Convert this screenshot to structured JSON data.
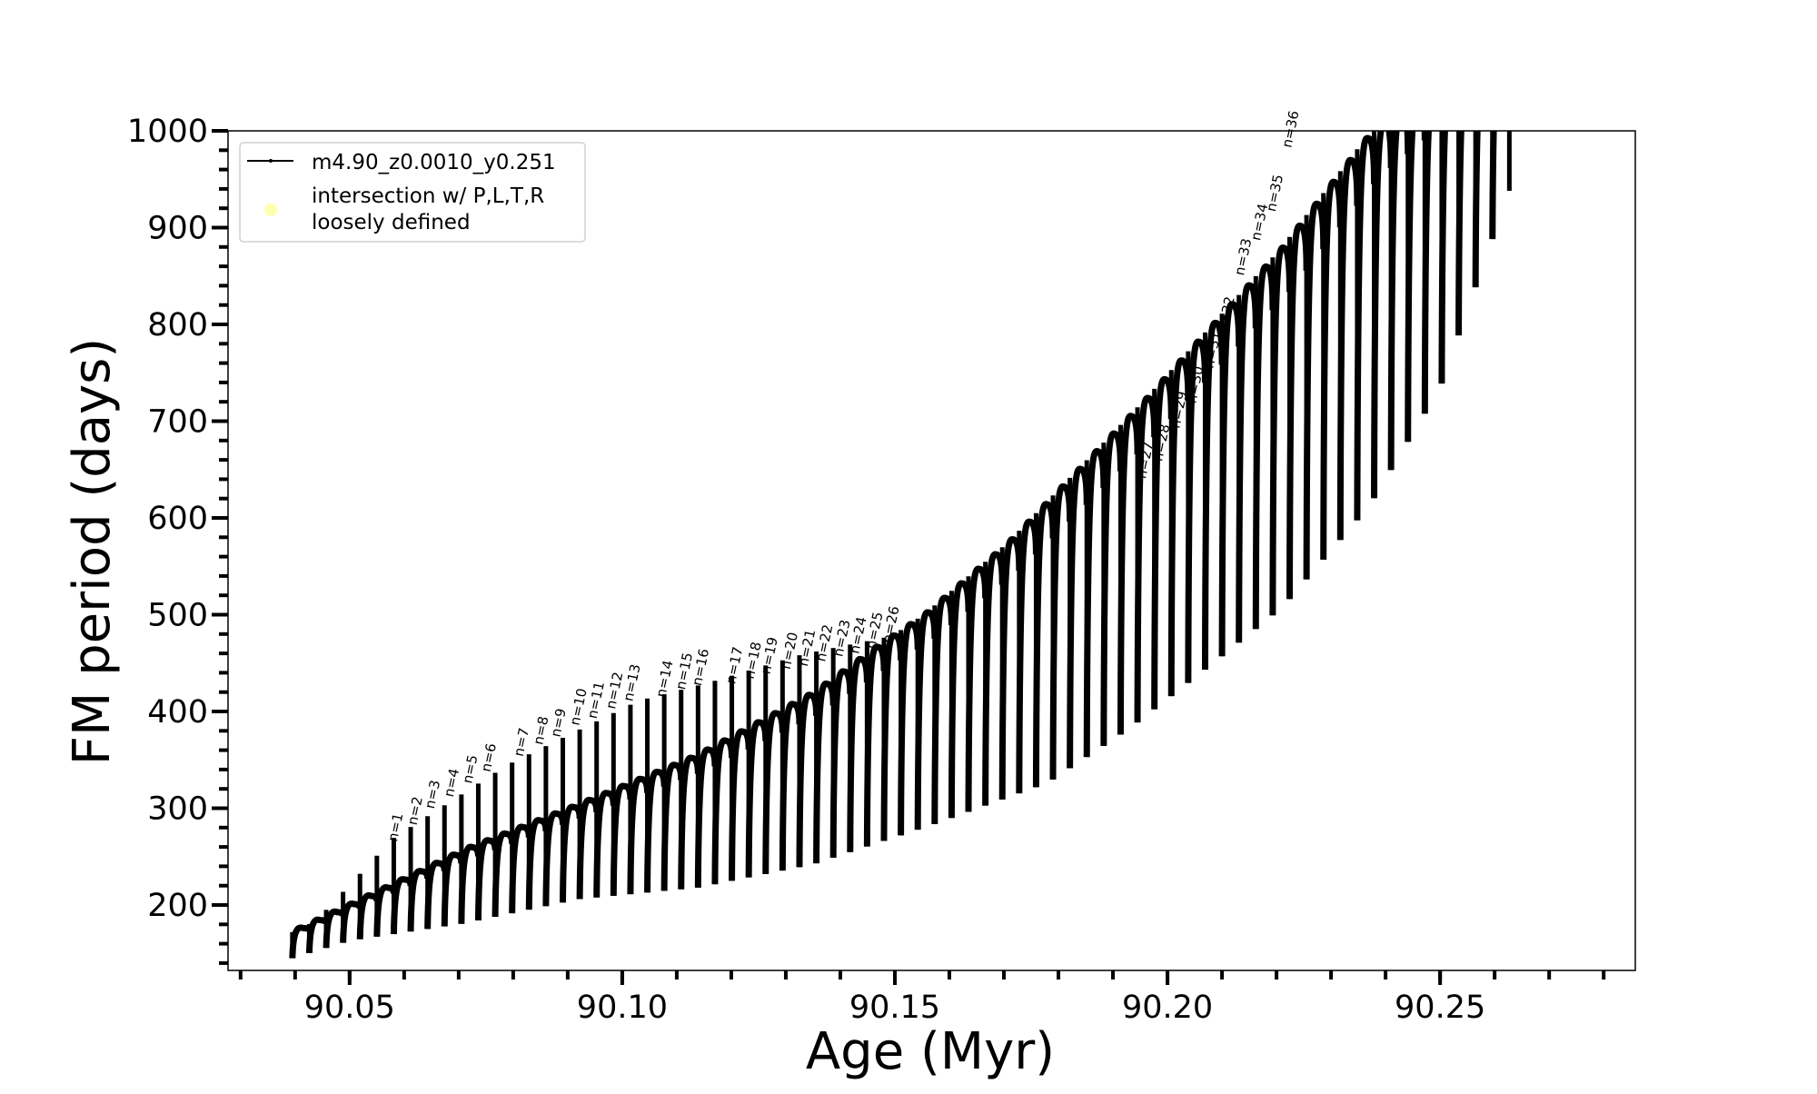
{
  "chart_data": {
    "type": "line",
    "title": "",
    "xlabel": "Age (Myr)",
    "ylabel": "FM period (days)",
    "xlim": [
      90.0277,
      90.2858
    ],
    "ylim": [
      132.4,
      1000
    ],
    "xticks": [
      "90.05",
      "90.10",
      "90.15",
      "90.20",
      "90.25"
    ],
    "xtick_values": [
      90.05,
      90.1,
      90.15,
      90.2,
      90.25
    ],
    "x_minor_step": 0.01,
    "yticks": [
      "200",
      "300",
      "400",
      "500",
      "600",
      "700",
      "800",
      "900",
      "1000"
    ],
    "ytick_values": [
      200,
      300,
      400,
      500,
      600,
      700,
      800,
      900,
      1000
    ],
    "y_minor_step": 20,
    "grid": false,
    "legend": {
      "placement": "top-left",
      "entries": [
        {
          "label": "m4.90_z0.0010_y0.251",
          "marker": "line-with-dots",
          "color": "#000000"
        },
        {
          "label_line1": "intersection w/ P,L,T,R",
          "label_line2": "loosely defined",
          "marker": "circle",
          "color": "#ffffb0"
        }
      ]
    },
    "series": [
      {
        "name": "m4.90_z0.0010_y0.251",
        "color": "#000000",
        "cycle_ages": [
          90.0395,
          90.0426,
          90.0457,
          90.0488,
          90.0519,
          90.055,
          90.0581,
          90.0612,
          90.0643,
          90.0674,
          90.0705,
          90.0736,
          90.0767,
          90.0798,
          90.0829,
          90.086,
          90.0891,
          90.0922,
          90.0953,
          90.0984,
          90.1015,
          90.1046,
          90.1077,
          90.1108,
          90.1139,
          90.117,
          90.1201,
          90.1232,
          90.1263,
          90.1294,
          90.1325,
          90.1356,
          90.1387,
          90.1418,
          90.1449,
          90.148,
          90.1511,
          90.1542,
          90.1573,
          90.1604,
          90.1635,
          90.1666,
          90.1697,
          90.1728,
          90.1759,
          90.179,
          90.1821,
          90.1852,
          90.1883,
          90.1914,
          90.1945,
          90.1976,
          90.2007,
          90.2038,
          90.2069,
          90.21,
          90.2131,
          90.2162,
          90.2193,
          90.2224,
          90.2255,
          90.2286,
          90.2317,
          90.2348,
          90.2379,
          90.241,
          90.2441,
          90.2472,
          90.2503,
          90.2534,
          90.2565,
          90.2596,
          90.2627
        ],
        "peak_envelope": [
          [
            90.0395,
            172
          ],
          [
            90.05,
            200
          ],
          [
            90.0713,
            258
          ],
          [
            90.0924,
            305
          ],
          [
            90.1137,
            355
          ],
          [
            90.1351,
            420
          ],
          [
            90.1463,
            466
          ],
          [
            90.1553,
            500
          ],
          [
            90.1708,
            575
          ],
          [
            90.1953,
            719
          ],
          [
            90.2207,
            878
          ],
          [
            90.2374,
            1000
          ],
          [
            90.2627,
            1100
          ]
        ],
        "bottom_envelope": [
          [
            90.0395,
            145
          ],
          [
            90.05,
            163
          ],
          [
            90.071,
            181
          ],
          [
            90.092,
            206
          ],
          [
            90.114,
            218
          ],
          [
            90.135,
            242
          ],
          [
            90.157,
            283
          ],
          [
            90.178,
            326
          ],
          [
            90.193,
            382
          ],
          [
            90.208,
            448
          ],
          [
            90.221,
            507
          ],
          [
            90.237,
            612
          ],
          [
            90.25,
            734
          ],
          [
            90.2627,
            938
          ]
        ],
        "spike_top_envelope": [
          [
            90.0395,
            165
          ],
          [
            90.0457,
            195
          ],
          [
            90.058,
            269
          ],
          [
            90.079,
            345
          ],
          [
            90.103,
            411
          ],
          [
            90.116,
            430
          ],
          [
            90.133,
            459
          ],
          [
            90.1495,
            478
          ],
          [
            90.1553,
            500
          ],
          [
            90.1708,
            575
          ],
          [
            90.1953,
            719
          ],
          [
            90.2207,
            878
          ],
          [
            90.2374,
            1000
          ],
          [
            90.2627,
            1100
          ]
        ]
      }
    ],
    "annotations": [
      {
        "text": "n=1",
        "age": 90.059,
        "period": 263
      },
      {
        "text": "n=2",
        "age": 90.0626,
        "period": 280
      },
      {
        "text": "n=3",
        "age": 90.0658,
        "period": 297
      },
      {
        "text": "n=4",
        "age": 90.0693,
        "period": 309
      },
      {
        "text": "n=5",
        "age": 90.0727,
        "period": 323
      },
      {
        "text": "n=6",
        "age": 90.0761,
        "period": 335
      },
      {
        "text": "n=7",
        "age": 90.0821,
        "period": 351
      },
      {
        "text": "n=8",
        "age": 90.0857,
        "period": 363
      },
      {
        "text": "n=9",
        "age": 90.0889,
        "period": 371
      },
      {
        "text": "n=10",
        "age": 90.0924,
        "period": 383
      },
      {
        "text": "n=11",
        "age": 90.0956,
        "period": 390
      },
      {
        "text": "n=12",
        "age": 90.099,
        "period": 400
      },
      {
        "text": "n=13",
        "age": 90.1022,
        "period": 408
      },
      {
        "text": "n=14",
        "age": 90.1082,
        "period": 412
      },
      {
        "text": "n=15",
        "age": 90.1118,
        "period": 420
      },
      {
        "text": "n=16",
        "age": 90.1148,
        "period": 424
      },
      {
        "text": "n=17",
        "age": 90.121,
        "period": 426
      },
      {
        "text": "n=18",
        "age": 90.1244,
        "period": 431
      },
      {
        "text": "n=19",
        "age": 90.1274,
        "period": 436
      },
      {
        "text": "n=20",
        "age": 90.1311,
        "period": 441
      },
      {
        "text": "n=21",
        "age": 90.1343,
        "period": 444
      },
      {
        "text": "n=22",
        "age": 90.1375,
        "period": 449
      },
      {
        "text": "n=23",
        "age": 90.1407,
        "period": 454
      },
      {
        "text": "n=24",
        "age": 90.1437,
        "period": 457
      },
      {
        "text": "n=25",
        "age": 90.1467,
        "period": 462
      },
      {
        "text": "n=26",
        "age": 90.1497,
        "period": 468
      },
      {
        "text": "n=27",
        "age": 90.1963,
        "period": 638
      },
      {
        "text": "n=28",
        "age": 90.1993,
        "period": 656
      },
      {
        "text": "n=29",
        "age": 90.2025,
        "period": 690
      },
      {
        "text": "n=30",
        "age": 90.2055,
        "period": 716
      },
      {
        "text": "n=31",
        "age": 90.2087,
        "period": 752
      },
      {
        "text": "n=32",
        "age": 90.2112,
        "period": 788
      },
      {
        "text": "n=33",
        "age": 90.2143,
        "period": 848
      },
      {
        "text": "n=34",
        "age": 90.2173,
        "period": 884
      },
      {
        "text": "n=35",
        "age": 90.2201,
        "period": 914
      },
      {
        "text": "n=36",
        "age": 90.223,
        "period": 980
      }
    ]
  }
}
